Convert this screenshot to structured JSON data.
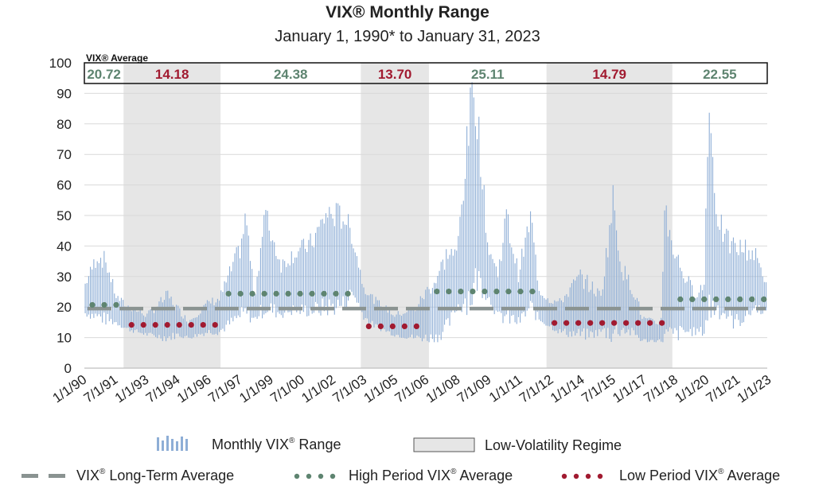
{
  "chart_data": {
    "type": "bar",
    "title": "VIX® Monthly Range",
    "subtitle": "January 1, 1990* to January 31, 2023",
    "ylim": [
      0,
      100
    ],
    "yticks": [
      0,
      10,
      20,
      30,
      40,
      50,
      60,
      70,
      80,
      90,
      100
    ],
    "xticks": [
      "1/1/90",
      "7/1/91",
      "1/1/93",
      "7/1/94",
      "1/1/96",
      "7/1/97",
      "1/1/99",
      "7/1/00",
      "1/1/02",
      "7/1/03",
      "1/1/05",
      "7/1/06",
      "1/1/08",
      "7/1/09",
      "1/1/11",
      "7/1/12",
      "1/1/14",
      "7/1/15",
      "1/1/17",
      "7/1/18",
      "1/1/20",
      "7/1/21",
      "1/1/23"
    ],
    "average_box_label": "VIX® Average",
    "long_term_average": 19.5,
    "periods": [
      {
        "start": 1990.0,
        "end": 1991.9,
        "regime": "high",
        "average": 20.72,
        "label": "20.72"
      },
      {
        "start": 1991.9,
        "end": 1996.6,
        "regime": "low",
        "average": 14.18,
        "label": "14.18"
      },
      {
        "start": 1996.6,
        "end": 2003.4,
        "regime": "high",
        "average": 24.38,
        "label": "24.38"
      },
      {
        "start": 2003.4,
        "end": 2006.7,
        "regime": "low",
        "average": 13.7,
        "label": "13.70"
      },
      {
        "start": 2006.7,
        "end": 2012.4,
        "regime": "high",
        "average": 25.11,
        "label": "25.11"
      },
      {
        "start": 2012.4,
        "end": 2018.5,
        "regime": "low",
        "average": 14.79,
        "label": "14.79"
      },
      {
        "start": 2018.5,
        "end": 2023.1,
        "regime": "high",
        "average": 22.55,
        "label": "22.55"
      }
    ],
    "series": [
      {
        "name": "Monthly VIX® Range",
        "anchors": [
          [
            1990.0,
            18,
            27
          ],
          [
            1990.6,
            17,
            36
          ],
          [
            1991.0,
            16,
            34
          ],
          [
            1991.5,
            15,
            23
          ],
          [
            1992.0,
            13,
            20
          ],
          [
            1993.0,
            11,
            17
          ],
          [
            1994.0,
            10,
            23
          ],
          [
            1994.5,
            11,
            19
          ],
          [
            1995.0,
            10,
            15
          ],
          [
            1996.0,
            12,
            21
          ],
          [
            1996.5,
            12,
            22
          ],
          [
            1997.5,
            17,
            38
          ],
          [
            1997.8,
            18,
            48
          ],
          [
            1998.2,
            16,
            22
          ],
          [
            1998.7,
            20,
            49
          ],
          [
            1999.5,
            18,
            33
          ],
          [
            2000.0,
            19,
            36
          ],
          [
            2001.0,
            19,
            40
          ],
          [
            2001.7,
            20,
            49
          ],
          [
            2002.6,
            21,
            48
          ],
          [
            2002.9,
            25,
            43
          ],
          [
            2003.2,
            22,
            35
          ],
          [
            2003.5,
            17,
            26
          ],
          [
            2004.0,
            14,
            22
          ],
          [
            2005.0,
            11,
            17
          ],
          [
            2006.0,
            10,
            19
          ],
          [
            2006.5,
            10,
            24
          ],
          [
            2007.0,
            10,
            28
          ],
          [
            2007.6,
            14,
            37
          ],
          [
            2008.0,
            20,
            36
          ],
          [
            2008.8,
            25,
            89
          ],
          [
            2009.0,
            30,
            81
          ],
          [
            2009.5,
            24,
            40
          ],
          [
            2010.0,
            17,
            30
          ],
          [
            2010.4,
            17,
            48
          ],
          [
            2011.0,
            15,
            30
          ],
          [
            2011.6,
            20,
            48
          ],
          [
            2012.0,
            16,
            25
          ],
          [
            2012.5,
            14,
            22
          ],
          [
            2013.0,
            12,
            21
          ],
          [
            2014.0,
            11,
            29
          ],
          [
            2014.5,
            11,
            26
          ],
          [
            2015.0,
            12,
            23
          ],
          [
            2015.6,
            12,
            53
          ],
          [
            2016.0,
            13,
            32
          ],
          [
            2016.7,
            11,
            23
          ],
          [
            2017.0,
            9,
            16
          ],
          [
            2017.9,
            9,
            14
          ],
          [
            2018.1,
            10,
            50
          ],
          [
            2018.6,
            11,
            36
          ],
          [
            2019.0,
            12,
            30
          ],
          [
            2019.5,
            12,
            24
          ],
          [
            2020.0,
            12,
            26
          ],
          [
            2020.2,
            20,
            85
          ],
          [
            2020.6,
            20,
            50
          ],
          [
            2021.0,
            18,
            41
          ],
          [
            2021.5,
            15,
            38
          ],
          [
            2022.0,
            17,
            38
          ],
          [
            2022.5,
            20,
            36
          ],
          [
            2023.1,
            18,
            26
          ]
        ]
      }
    ]
  },
  "legend": {
    "monthly_range": "Monthly VIX",
    "monthly_range_suffix": " Range",
    "low_vol": "Low-Volatility Regime",
    "long_term": "VIX",
    "long_term_suffix": " Long-Term Average",
    "high_period": "High Period VIX",
    "high_period_suffix": " Average",
    "low_period": "Low Period VIX",
    "low_period_suffix": " Average",
    "registered": "®"
  },
  "colors": {
    "bar": "#8eaed6",
    "long_term_line": "#8a9391",
    "high_dot": "#5e8470",
    "low_dot": "#a11a30",
    "high_text": "#5e8470",
    "low_text": "#a11a30",
    "shade": "#e6e6e6"
  }
}
